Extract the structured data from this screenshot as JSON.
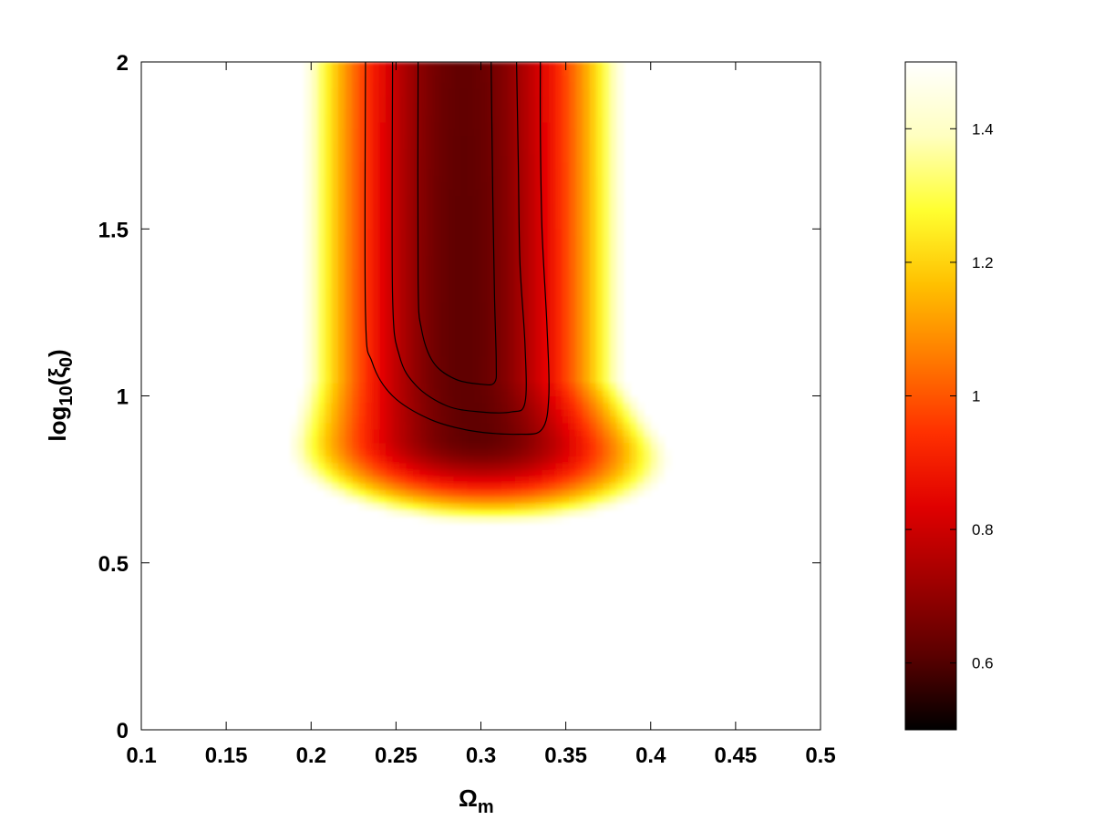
{
  "chart_data": {
    "type": "heatmap",
    "title": "",
    "xlabel": {
      "base": "Ω",
      "sub": "m"
    },
    "ylabel": {
      "prefix": "log",
      "sub": "10",
      "open": "(ξ",
      "sub2": "0",
      "close": ")"
    },
    "xlim": [
      0.1,
      0.5
    ],
    "ylim": [
      0,
      2
    ],
    "x_ticks": [
      "0.1",
      "0.15",
      "0.2",
      "0.25",
      "0.3",
      "0.35",
      "0.4",
      "0.45",
      "0.5"
    ],
    "y_ticks": [
      "0",
      "0.5",
      "1",
      "1.5",
      "2"
    ],
    "colorbar": {
      "range": [
        0.5,
        1.5
      ],
      "ticks": [
        "0.6",
        "0.8",
        "1",
        "1.2",
        "1.4"
      ],
      "colormap": [
        "#000000",
        "#5a0000",
        "#a00000",
        "#e00000",
        "#ff3000",
        "#ff7a00",
        "#ffc000",
        "#ffff30",
        "#ffffc0",
        "#ffffff"
      ]
    },
    "minimum": {
      "x": 0.29,
      "y": 1.2,
      "value": 0.62
    },
    "contours": [
      {
        "level": 1,
        "points": [
          [
            0.263,
            2.0
          ],
          [
            0.263,
            1.35
          ],
          [
            0.265,
            1.2
          ],
          [
            0.272,
            1.1
          ],
          [
            0.285,
            1.05
          ],
          [
            0.3,
            1.035
          ],
          [
            0.308,
            1.04
          ],
          [
            0.309,
            1.1
          ],
          [
            0.308,
            1.3
          ],
          [
            0.307,
            1.6
          ],
          [
            0.306,
            2.0
          ]
        ]
      },
      {
        "level": 2,
        "points": [
          [
            0.248,
            2.0
          ],
          [
            0.248,
            1.3
          ],
          [
            0.252,
            1.12
          ],
          [
            0.262,
            1.03
          ],
          [
            0.28,
            0.97
          ],
          [
            0.3,
            0.952
          ],
          [
            0.318,
            0.952
          ],
          [
            0.326,
            0.98
          ],
          [
            0.326,
            1.15
          ],
          [
            0.323,
            1.4
          ],
          [
            0.322,
            1.7
          ],
          [
            0.321,
            2.0
          ]
        ]
      },
      {
        "level": 3,
        "points": [
          [
            0.232,
            2.0
          ],
          [
            0.232,
            1.25
          ],
          [
            0.236,
            1.1
          ],
          [
            0.248,
            1.0
          ],
          [
            0.27,
            0.93
          ],
          [
            0.295,
            0.895
          ],
          [
            0.322,
            0.885
          ],
          [
            0.336,
            0.9
          ],
          [
            0.34,
            1.0
          ],
          [
            0.339,
            1.2
          ],
          [
            0.336,
            1.5
          ],
          [
            0.335,
            1.8
          ],
          [
            0.335,
            2.0
          ]
        ]
      }
    ],
    "grid": false
  }
}
